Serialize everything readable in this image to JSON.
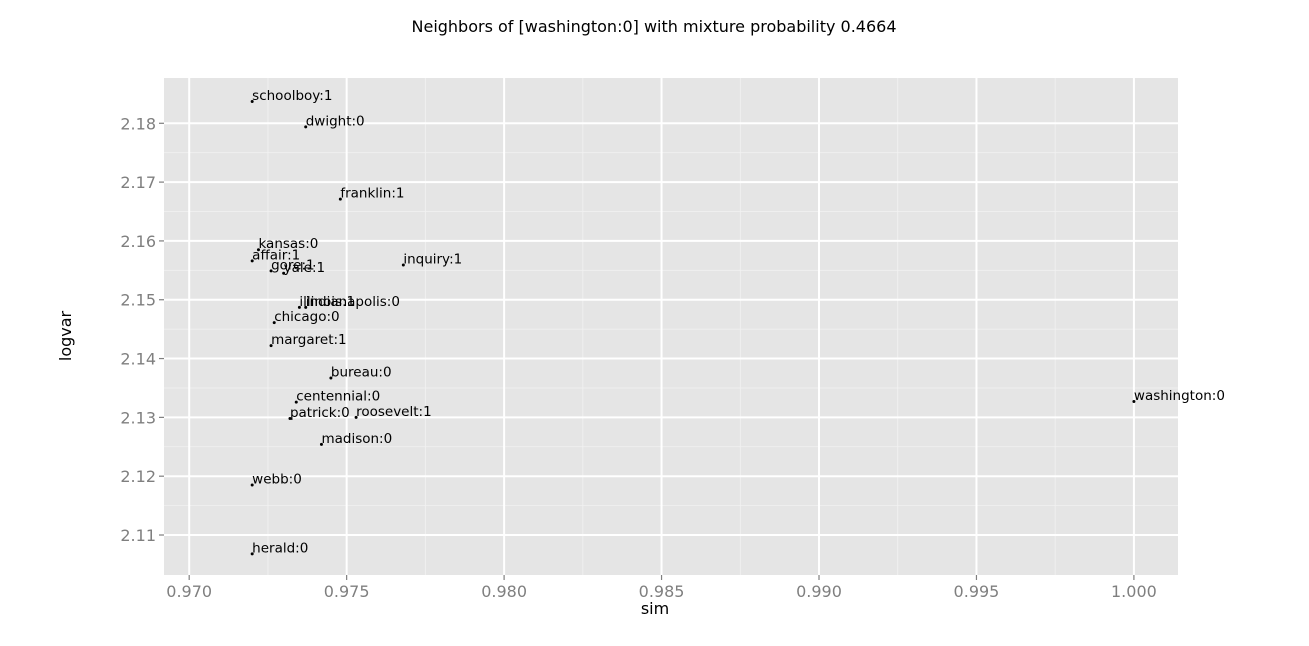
{
  "chart_data": {
    "type": "scatter",
    "title": "Neighbors of [washington:0] with mixture probability 0.4664",
    "xlabel": "sim",
    "ylabel": "logvar",
    "xlim": [
      0.9692,
      1.0014
    ],
    "ylim": [
      2.1032,
      2.1877
    ],
    "x_ticks": [
      {
        "value": 0.97,
        "label": "0.970"
      },
      {
        "value": 0.975,
        "label": "0.975"
      },
      {
        "value": 0.98,
        "label": "0.980"
      },
      {
        "value": 0.985,
        "label": "0.985"
      },
      {
        "value": 0.99,
        "label": "0.990"
      },
      {
        "value": 0.995,
        "label": "0.995"
      },
      {
        "value": 1.0,
        "label": "1.000"
      }
    ],
    "y_ticks": [
      {
        "value": 2.11,
        "label": "2.11"
      },
      {
        "value": 2.12,
        "label": "2.12"
      },
      {
        "value": 2.13,
        "label": "2.13"
      },
      {
        "value": 2.14,
        "label": "2.14"
      },
      {
        "value": 2.15,
        "label": "2.15"
      },
      {
        "value": 2.16,
        "label": "2.16"
      },
      {
        "value": 2.17,
        "label": "2.17"
      },
      {
        "value": 2.18,
        "label": "2.18"
      }
    ],
    "grid": true,
    "points": [
      {
        "label": "schoolboy:1",
        "x": 0.972,
        "y": 2.1837
      },
      {
        "label": "dwight:0",
        "x": 0.9737,
        "y": 2.1794
      },
      {
        "label": "franklin:1",
        "x": 0.9748,
        "y": 2.1671
      },
      {
        "label": "kansas:0",
        "x": 0.9722,
        "y": 2.1585
      },
      {
        "label": "affair:1",
        "x": 0.972,
        "y": 2.1566
      },
      {
        "label": "gore:1",
        "x": 0.9726,
        "y": 2.1549
      },
      {
        "label": "yale:1",
        "x": 0.973,
        "y": 2.1545
      },
      {
        "label": "inquiry:1",
        "x": 0.9768,
        "y": 2.1559
      },
      {
        "label": "indianapolis:0",
        "x": 0.9737,
        "y": 2.1487
      },
      {
        "label": "illinois:1",
        "x": 0.9735,
        "y": 2.1487
      },
      {
        "label": "chicago:0",
        "x": 0.9727,
        "y": 2.1461
      },
      {
        "label": "margaret:1",
        "x": 0.9726,
        "y": 2.1422
      },
      {
        "label": "bureau:0",
        "x": 0.9745,
        "y": 2.1367
      },
      {
        "label": "centennial:0",
        "x": 0.9734,
        "y": 2.1326
      },
      {
        "label": "patrick:0",
        "x": 0.9732,
        "y": 2.1298
      },
      {
        "label": "roosevelt:1",
        "x": 0.9753,
        "y": 2.13
      },
      {
        "label": "madison:0",
        "x": 0.9742,
        "y": 2.1254
      },
      {
        "label": "webb:0",
        "x": 0.972,
        "y": 2.1185
      },
      {
        "label": "herald:0",
        "x": 0.972,
        "y": 2.1068
      },
      {
        "label": "washington:0",
        "x": 1.0,
        "y": 2.1327
      }
    ]
  }
}
